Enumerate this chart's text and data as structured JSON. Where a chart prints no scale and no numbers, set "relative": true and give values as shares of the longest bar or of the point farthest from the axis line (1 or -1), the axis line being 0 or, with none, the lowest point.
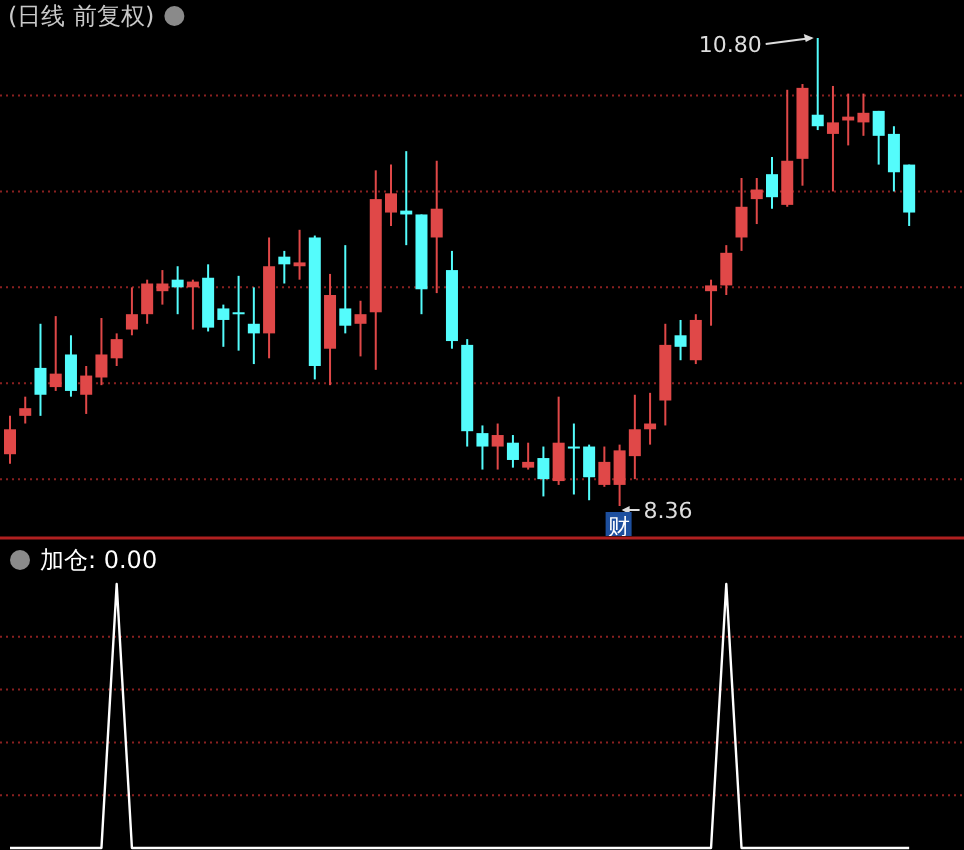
{
  "chart_data": [
    {
      "type": "candlestick",
      "title": "(日线 前复权)",
      "categories": [
        null,
        null,
        null,
        null,
        null,
        null,
        null,
        null,
        null,
        null,
        null,
        null,
        null,
        null,
        null,
        null,
        null,
        null,
        null,
        null,
        null,
        null,
        null,
        null,
        null,
        null,
        null,
        null,
        null,
        null,
        null,
        null,
        null,
        null,
        null,
        null,
        null,
        null,
        null,
        null,
        null,
        null,
        null,
        null,
        null,
        null,
        null,
        null,
        null,
        null,
        null,
        null,
        null,
        null,
        null,
        null,
        null,
        null,
        null,
        null
      ],
      "ohlc": [
        [
          8.63,
          8.83,
          8.58,
          8.76
        ],
        [
          8.83,
          8.93,
          8.79,
          8.87
        ],
        [
          9.08,
          9.31,
          8.83,
          8.94
        ],
        [
          8.98,
          9.35,
          8.96,
          9.05
        ],
        [
          9.15,
          9.25,
          8.93,
          8.96
        ],
        [
          8.94,
          9.09,
          8.84,
          9.04
        ],
        [
          9.03,
          9.34,
          8.99,
          9.15
        ],
        [
          9.13,
          9.26,
          9.09,
          9.23
        ],
        [
          9.28,
          9.5,
          9.25,
          9.36
        ],
        [
          9.36,
          9.54,
          9.31,
          9.52
        ],
        [
          9.48,
          9.59,
          9.41,
          9.52
        ],
        [
          9.54,
          9.61,
          9.36,
          9.5
        ],
        [
          9.5,
          9.54,
          9.28,
          9.53
        ],
        [
          9.55,
          9.62,
          9.27,
          9.29
        ],
        [
          9.39,
          9.41,
          9.19,
          9.33
        ],
        [
          9.37,
          9.56,
          9.17,
          9.37
        ],
        [
          9.31,
          9.5,
          9.1,
          9.26
        ],
        [
          9.26,
          9.76,
          9.13,
          9.61
        ],
        [
          9.66,
          9.69,
          9.52,
          9.62
        ],
        [
          9.61,
          9.8,
          9.54,
          9.63
        ],
        [
          9.76,
          9.77,
          9.02,
          9.09
        ],
        [
          9.18,
          9.57,
          8.99,
          9.46
        ],
        [
          9.39,
          9.72,
          9.26,
          9.3
        ],
        [
          9.31,
          9.43,
          9.14,
          9.36
        ],
        [
          9.37,
          10.11,
          9.07,
          9.96
        ],
        [
          9.89,
          10.14,
          9.82,
          9.99
        ],
        [
          9.9,
          10.21,
          9.72,
          9.88
        ],
        [
          9.88,
          9.88,
          9.36,
          9.49
        ],
        [
          9.76,
          10.16,
          9.47,
          9.91
        ],
        [
          9.59,
          9.69,
          9.18,
          9.22
        ],
        [
          9.2,
          9.23,
          8.67,
          8.75
        ],
        [
          8.74,
          8.78,
          8.55,
          8.67
        ],
        [
          8.67,
          8.79,
          8.55,
          8.73
        ],
        [
          8.69,
          8.73,
          8.56,
          8.6
        ],
        [
          8.56,
          8.69,
          8.55,
          8.59
        ],
        [
          8.61,
          8.67,
          8.41,
          8.5
        ],
        [
          8.49,
          8.93,
          8.47,
          8.69
        ],
        [
          8.67,
          8.79,
          8.42,
          8.67
        ],
        [
          8.67,
          8.68,
          8.39,
          8.51
        ],
        [
          8.47,
          8.67,
          8.46,
          8.59
        ],
        [
          8.47,
          8.68,
          8.36,
          8.65
        ],
        [
          8.62,
          8.94,
          8.5,
          8.76
        ],
        [
          8.76,
          8.95,
          8.68,
          8.79
        ],
        [
          8.91,
          9.31,
          8.78,
          9.2
        ],
        [
          9.25,
          9.33,
          9.12,
          9.19
        ],
        [
          9.12,
          9.36,
          9.1,
          9.33
        ],
        [
          9.48,
          9.54,
          9.3,
          9.51
        ],
        [
          9.51,
          9.72,
          9.46,
          9.68
        ],
        [
          9.76,
          10.07,
          9.69,
          9.92
        ],
        [
          9.96,
          10.07,
          9.83,
          10.01
        ],
        [
          10.09,
          10.18,
          9.91,
          9.97
        ],
        [
          9.93,
          10.53,
          9.92,
          10.16
        ],
        [
          10.17,
          10.56,
          10.03,
          10.54
        ],
        [
          10.4,
          10.8,
          10.32,
          10.34
        ],
        [
          10.3,
          10.55,
          10.0,
          10.36
        ],
        [
          10.37,
          10.51,
          10.24,
          10.39
        ],
        [
          10.36,
          10.51,
          10.29,
          10.41
        ],
        [
          10.42,
          10.42,
          10.14,
          10.29
        ],
        [
          10.3,
          10.34,
          10.0,
          10.1
        ],
        [
          10.14,
          10.14,
          9.82,
          9.89
        ]
      ],
      "yticks": [
        {
          "value": 10.5,
          "label": null
        },
        {
          "value": 10.0,
          "label": null
        },
        {
          "value": 9.5,
          "label": null
        },
        {
          "value": 9.0,
          "label": null
        },
        {
          "value": 8.5,
          "label": null
        }
      ],
      "grid": "y",
      "annotations": [
        "10.80",
        "8.36",
        "财"
      ]
    },
    {
      "type": "line",
      "title": "加仓: 0.00",
      "relative": true,
      "color": "#ffffff",
      "ref_lines": [
        {
          "axis": "y",
          "value": 0.2,
          "color": "#8a2020",
          "line_style": "dotted"
        },
        {
          "axis": "y",
          "value": 0.4,
          "color": "#8a2020",
          "line_style": "dotted"
        },
        {
          "axis": "y",
          "value": 0.6,
          "color": "#8a2020",
          "line_style": "dotted"
        },
        {
          "axis": "y",
          "value": 0.8,
          "color": "#8a2020",
          "line_style": "dotted"
        }
      ],
      "categories": [
        null,
        null,
        null,
        null,
        null,
        null,
        null,
        null,
        null,
        null,
        null,
        null,
        null,
        null,
        null,
        null,
        null,
        null,
        null,
        null,
        null,
        null,
        null,
        null,
        null,
        null,
        null,
        null,
        null,
        null,
        null,
        null,
        null,
        null,
        null,
        null,
        null,
        null,
        null,
        null,
        null,
        null,
        null,
        null,
        null,
        null,
        null,
        null,
        null,
        null,
        null,
        null,
        null,
        null,
        null,
        null,
        null,
        null,
        null,
        null
      ],
      "values": [
        0,
        0,
        0,
        0,
        0,
        0,
        0,
        1,
        0,
        0,
        0,
        0,
        0,
        0,
        0,
        0,
        0,
        0,
        0,
        0,
        0,
        0,
        0,
        0,
        0,
        0,
        0,
        0,
        0,
        0,
        0,
        0,
        0,
        0,
        0,
        0,
        0,
        0,
        0,
        0,
        0,
        0,
        0,
        0,
        0,
        0,
        0,
        1,
        0,
        0,
        0,
        0,
        0,
        0,
        0,
        0,
        0,
        0,
        0,
        0
      ]
    }
  ]
}
